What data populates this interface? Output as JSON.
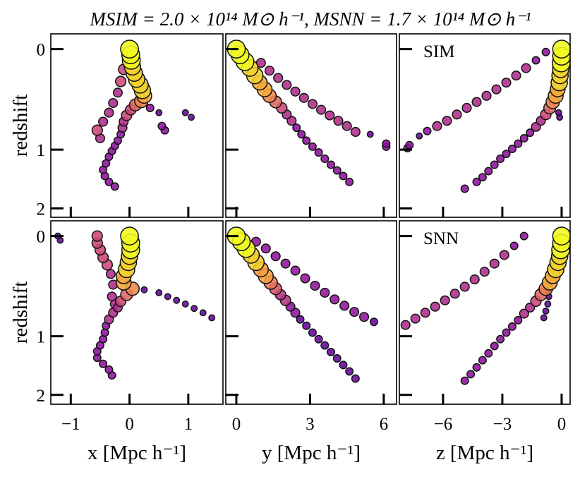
{
  "title": "MSIM = 2.0 × 10¹⁴ M⊙ h⁻¹,  MSNN = 1.7 × 10¹⁴ M⊙ h⁻¹",
  "colormap": "plasma",
  "chart_data": [
    {
      "type": "scatter",
      "ylabel": "redshift",
      "yscale": "log1p",
      "xlim": [
        -1.34,
        1.59
      ],
      "xticks": [
        -1,
        0,
        1
      ],
      "ylim": [
        -0.1,
        2.19
      ],
      "yticks": [
        0,
        1,
        2
      ],
      "x": [
        0,
        0.02,
        0.03,
        0.05,
        0.08,
        0.12,
        0.18,
        0.22,
        0.25,
        0.2,
        0.1,
        0.02,
        -0.05,
        -0.1,
        -0.12,
        -0.15,
        -0.2,
        -0.25,
        -0.3,
        -0.35,
        -0.4,
        -0.45,
        -0.42,
        -0.35,
        -0.25,
        -0.1,
        -0.15,
        -0.2,
        -0.28,
        -0.35,
        -0.45,
        -0.55,
        -0.5,
        0.5,
        0.55,
        0.6,
        0.95,
        1.05,
        0.35
      ],
      "y": [
        0,
        0.04,
        0.08,
        0.13,
        0.18,
        0.23,
        0.28,
        0.33,
        0.38,
        0.43,
        0.47,
        0.52,
        0.58,
        0.65,
        0.72,
        0.8,
        0.88,
        0.95,
        1.02,
        1.1,
        1.2,
        1.3,
        1.4,
        1.5,
        1.58,
        0.15,
        0.25,
        0.35,
        0.45,
        0.55,
        0.65,
        0.75,
        0.85,
        0.55,
        0.7,
        0.75,
        0.55,
        0.6,
        0.5
      ],
      "sizes": [
        12,
        12,
        12,
        11,
        11,
        11,
        11,
        11,
        10,
        9,
        8,
        7,
        7,
        6,
        6,
        5,
        5,
        5,
        5,
        5,
        5,
        5,
        5,
        5,
        5,
        7,
        7,
        6,
        6,
        6,
        6,
        7,
        6,
        4,
        5,
        5,
        4,
        4,
        5
      ]
    },
    {
      "type": "scatter",
      "yscale": "log1p",
      "xlim": [
        -0.43,
        6.52
      ],
      "xticks": [
        0,
        3,
        6
      ],
      "ylim": [
        -0.1,
        2.19
      ],
      "yticks": [
        0,
        1,
        2
      ],
      "x": [
        0,
        0.15,
        0.35,
        0.55,
        0.75,
        0.95,
        1.15,
        1.35,
        1.6,
        1.85,
        2.05,
        2.25,
        2.45,
        2.65,
        2.85,
        3.1,
        3.35,
        3.6,
        3.85,
        4.1,
        4.35,
        4.6,
        1.0,
        1.35,
        1.7,
        2.05,
        2.4,
        2.75,
        3.1,
        3.45,
        3.8,
        4.15,
        4.5,
        4.85,
        5.45,
        6.1,
        6.1
      ],
      "y": [
        0,
        0.04,
        0.09,
        0.14,
        0.2,
        0.26,
        0.32,
        0.38,
        0.44,
        0.5,
        0.57,
        0.64,
        0.72,
        0.8,
        0.88,
        0.96,
        1.04,
        1.13,
        1.22,
        1.31,
        1.4,
        1.5,
        0.1,
        0.16,
        0.22,
        0.28,
        0.34,
        0.4,
        0.46,
        0.52,
        0.58,
        0.64,
        0.7,
        0.77,
        0.8,
        0.92,
        0.96
      ],
      "sizes": [
        12,
        12,
        12,
        11,
        11,
        10,
        10,
        9,
        8,
        7,
        6,
        6,
        5,
        5,
        5,
        5,
        5,
        5,
        5,
        5,
        5,
        5,
        6,
        6,
        6,
        6,
        6,
        6,
        6,
        6,
        6,
        6,
        6,
        6,
        4,
        5,
        5
      ]
    },
    {
      "type": "scatter",
      "label": "SIM",
      "yscale": "log1p",
      "xlim": [
        -8.21,
        0.43
      ],
      "xticks": [
        -6,
        -3,
        0
      ],
      "ylim": [
        -0.1,
        2.19
      ],
      "yticks": [
        0,
        1,
        2
      ],
      "x": [
        0,
        0,
        -0.02,
        -0.05,
        -0.08,
        -0.12,
        -0.2,
        -0.3,
        -0.45,
        -0.6,
        -0.8,
        -1.05,
        -1.3,
        -1.6,
        -1.9,
        -2.2,
        -2.5,
        -2.8,
        -3.1,
        -3.4,
        -3.7,
        -4.0,
        -4.3,
        -4.9,
        -0.8,
        -1.3,
        -1.8,
        -2.3,
        -2.8,
        -3.3,
        -3.8,
        -4.3,
        -4.8,
        -5.3,
        -5.8,
        -6.3,
        -6.8,
        -7.2,
        -7.7,
        -7.8,
        -0.15,
        -0.1
      ],
      "y": [
        0,
        0.05,
        0.1,
        0.15,
        0.2,
        0.26,
        0.32,
        0.38,
        0.44,
        0.5,
        0.57,
        0.64,
        0.71,
        0.78,
        0.85,
        0.92,
        0.99,
        1.06,
        1.13,
        1.22,
        1.32,
        1.42,
        1.5,
        1.62,
        0.02,
        0.08,
        0.14,
        0.2,
        0.26,
        0.32,
        0.38,
        0.44,
        0.5,
        0.57,
        0.64,
        0.7,
        0.76,
        0.82,
        0.94,
        0.98,
        0.55,
        0.6
      ],
      "sizes": [
        12,
        12,
        12,
        11,
        11,
        11,
        10,
        10,
        9,
        8,
        7,
        6,
        6,
        5,
        5,
        5,
        5,
        5,
        5,
        5,
        5,
        5,
        5,
        5,
        5,
        5,
        6,
        6,
        6,
        6,
        6,
        6,
        6,
        6,
        6,
        6,
        5,
        4,
        5,
        5,
        4,
        4
      ]
    },
    {
      "type": "scatter",
      "ylabel": "redshift",
      "xlabel": "x [Mpc h⁻¹]",
      "yscale": "log1p",
      "xlim": [
        -1.34,
        1.59
      ],
      "xticks": [
        {
          "value": -1,
          "label": "−1"
        },
        0,
        1
      ],
      "ylim": [
        -0.1,
        2.2
      ],
      "yticks": [
        0,
        1,
        2
      ],
      "x": [
        0,
        0.02,
        0.02,
        0,
        -0.02,
        -0.05,
        -0.1,
        -0.1,
        0.05,
        -0.05,
        -0.15,
        -0.2,
        -0.28,
        -0.35,
        -0.4,
        -0.42,
        -0.45,
        -0.5,
        -0.55,
        -0.55,
        -0.45,
        -0.35,
        -0.3,
        -0.55,
        -0.55,
        -0.5,
        -0.45,
        -0.38,
        -0.32,
        -0.28,
        -0.3,
        -0.25,
        0.25,
        0.5,
        0.65,
        0.8,
        0.95,
        1.1,
        1.25,
        1.4,
        -1.22,
        -1.18
      ],
      "y": [
        0,
        0.05,
        0.1,
        0.15,
        0.2,
        0.26,
        0.32,
        0.38,
        0.44,
        0.5,
        0.57,
        0.64,
        0.7,
        0.78,
        0.86,
        0.95,
        1.04,
        1.13,
        1.22,
        1.32,
        1.42,
        1.52,
        1.62,
        0,
        0.05,
        0.1,
        0.16,
        0.22,
        0.3,
        0.4,
        0.52,
        0.6,
        0.45,
        0.48,
        0.52,
        0.56,
        0.6,
        0.65,
        0.7,
        0.76,
        0,
        0.03
      ],
      "sizes": [
        12,
        12,
        12,
        11,
        11,
        11,
        10,
        10,
        9,
        8,
        7,
        6,
        6,
        6,
        5,
        5,
        5,
        5,
        5,
        5,
        5,
        5,
        5,
        7,
        7,
        7,
        7,
        7,
        6,
        6,
        6,
        6,
        4,
        4,
        4,
        4,
        4,
        4,
        4,
        4,
        4,
        4
      ]
    },
    {
      "type": "scatter",
      "xlabel": "y [Mpc h⁻¹]",
      "yscale": "log1p",
      "xlim": [
        -0.43,
        6.52
      ],
      "xticks": [
        0,
        3,
        6
      ],
      "ylim": [
        -0.1,
        2.2
      ],
      "yticks": [
        0,
        1,
        2
      ],
      "x": [
        0,
        0.2,
        0.4,
        0.6,
        0.8,
        1.0,
        1.2,
        1.4,
        1.6,
        1.8,
        2.0,
        2.2,
        2.4,
        2.6,
        2.85,
        3.1,
        3.35,
        3.6,
        3.85,
        4.1,
        4.35,
        4.6,
        4.85,
        0.8,
        1.2,
        1.6,
        2.0,
        2.4,
        2.8,
        3.2,
        3.6,
        4.0,
        4.4,
        4.8,
        5.2,
        5.6
      ],
      "y": [
        0,
        0.04,
        0.09,
        0.14,
        0.2,
        0.26,
        0.32,
        0.38,
        0.44,
        0.5,
        0.56,
        0.63,
        0.7,
        0.78,
        0.86,
        0.95,
        1.04,
        1.13,
        1.23,
        1.33,
        1.44,
        1.55,
        1.68,
        0.04,
        0.09,
        0.15,
        0.21,
        0.27,
        0.34,
        0.41,
        0.48,
        0.55,
        0.62,
        0.69,
        0.75,
        0.81
      ],
      "sizes": [
        12,
        12,
        12,
        11,
        11,
        10,
        10,
        9,
        8,
        7,
        7,
        6,
        6,
        5,
        5,
        5,
        5,
        5,
        5,
        5,
        5,
        5,
        5,
        6,
        6,
        6,
        6,
        6,
        6,
        6,
        6,
        6,
        6,
        6,
        6,
        5
      ]
    },
    {
      "type": "scatter",
      "label": "SNN",
      "xlabel": "z [Mpc h⁻¹]",
      "yscale": "log1p",
      "xlim": [
        -8.21,
        0.43
      ],
      "xticks": [
        {
          "value": -6,
          "label": "−6"
        },
        {
          "value": -3,
          "label": "−3"
        },
        0
      ],
      "ylim": [
        -0.1,
        2.2
      ],
      "yticks": [
        0,
        1,
        2
      ],
      "x": [
        0,
        0,
        -0.05,
        -0.1,
        -0.18,
        -0.3,
        -0.45,
        -0.6,
        -0.8,
        -1.05,
        -1.3,
        -1.6,
        -1.9,
        -2.2,
        -2.5,
        -2.8,
        -3.1,
        -3.4,
        -3.7,
        -4.0,
        -4.3,
        -4.6,
        -4.9,
        -1.9,
        -2.4,
        -2.9,
        -3.4,
        -3.9,
        -4.4,
        -4.9,
        -5.4,
        -5.9,
        -6.4,
        -6.9,
        -7.4,
        -7.9,
        -0.7,
        -0.65,
        -0.7,
        -0.8,
        -0.9
      ],
      "y": [
        0,
        0.05,
        0.1,
        0.15,
        0.2,
        0.26,
        0.32,
        0.38,
        0.44,
        0.5,
        0.57,
        0.64,
        0.71,
        0.79,
        0.87,
        0.95,
        1.04,
        1.14,
        1.25,
        1.36,
        1.48,
        1.6,
        1.72,
        0,
        0.07,
        0.14,
        0.21,
        0.28,
        0.35,
        0.42,
        0.49,
        0.56,
        0.63,
        0.7,
        0.77,
        0.85,
        0.45,
        0.52,
        0.6,
        0.68,
        0.76
      ],
      "sizes": [
        12,
        12,
        12,
        11,
        11,
        11,
        10,
        10,
        9,
        8,
        7,
        6,
        6,
        5,
        5,
        5,
        5,
        5,
        5,
        5,
        5,
        5,
        5,
        5,
        5,
        6,
        6,
        6,
        6,
        6,
        6,
        6,
        6,
        6,
        6,
        6,
        4,
        4,
        4,
        4,
        4
      ]
    }
  ]
}
